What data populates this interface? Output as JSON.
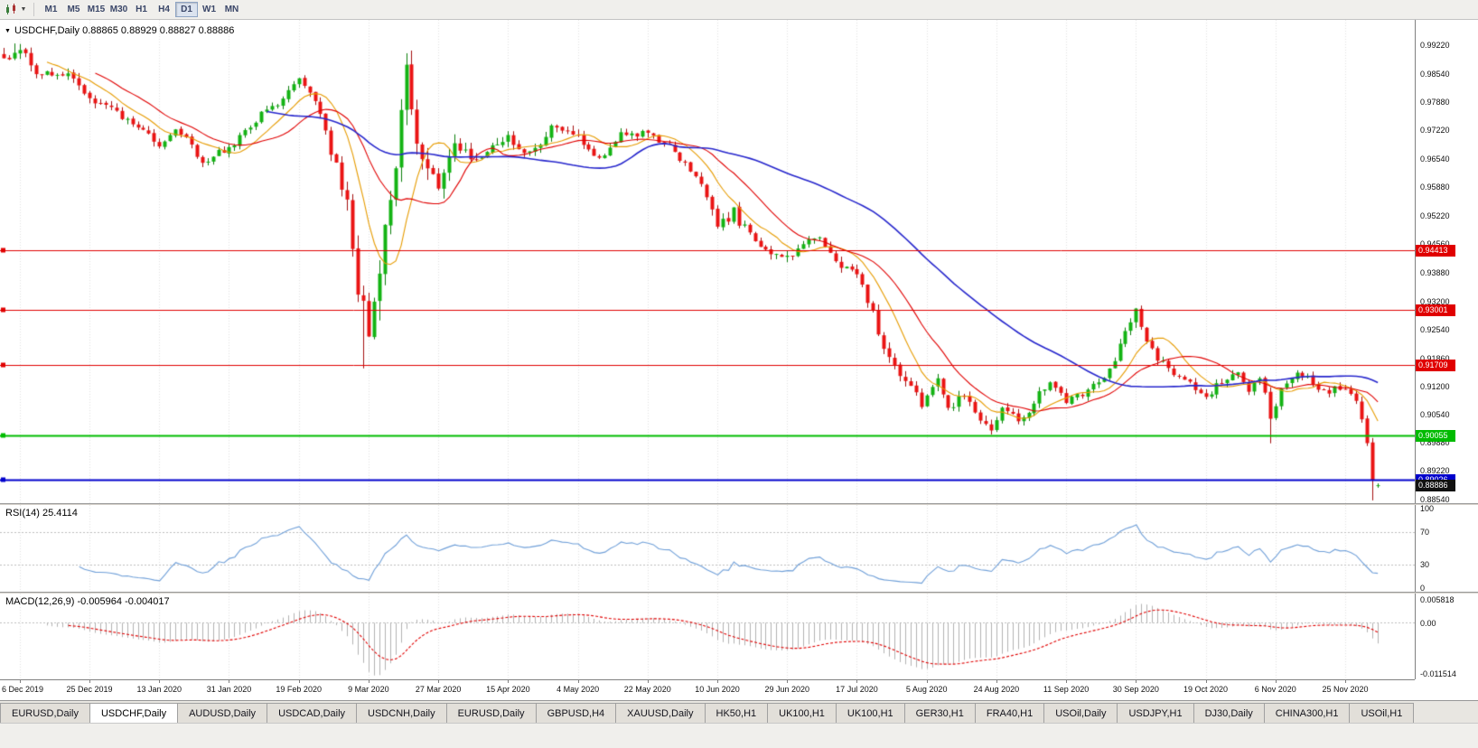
{
  "toolbar": {
    "timeframes": [
      "M1",
      "M5",
      "M15",
      "M30",
      "H1",
      "H4",
      "D1",
      "W1",
      "MN"
    ],
    "active_timeframe": "D1"
  },
  "chart": {
    "title": "USDCHF,Daily  0.88865 0.88929 0.88827 0.88886",
    "rsi_label": "RSI(14) 25.4114",
    "macd_label": "MACD(12,26,9) -0.005964 -0.004017"
  },
  "chart_data": {
    "type": "candlestick",
    "symbol": "USDCHF",
    "timeframe": "Daily",
    "current": {
      "open": 0.88865,
      "high": 0.88929,
      "low": 0.88827,
      "close": 0.88886
    },
    "rsi_period": 14,
    "rsi_value": 25.4114,
    "macd_params": [
      12,
      26,
      9
    ],
    "macd_main": -0.005964,
    "macd_signal": -0.004017,
    "y_range": [
      0.88464,
      0.99814
    ],
    "y_ticks": [
      "0.99220",
      "0.98540",
      "0.97880",
      "0.97220",
      "0.96540",
      "0.95880",
      "0.95220",
      "0.94560",
      "0.93880",
      "0.93200",
      "0.92540",
      "0.91860",
      "0.91200",
      "0.90540",
      "0.89880",
      "0.89220",
      "0.88540"
    ],
    "x_labels": [
      "6 Dec 2019",
      "25 Dec 2019",
      "13 Jan 2020",
      "31 Jan 2020",
      "19 Feb 2020",
      "9 Mar 2020",
      "27 Mar 2020",
      "15 Apr 2020",
      "4 May 2020",
      "22 May 2020",
      "10 Jun 2020",
      "29 Jun 2020",
      "17 Jul 2020",
      "5 Aug 2020",
      "24 Aug 2020",
      "11 Sep 2020",
      "30 Sep 2020",
      "19 Oct 2020",
      "6 Nov 2020",
      "25 Nov 2020"
    ],
    "label_day_start": 3,
    "label_day_step": 13,
    "bars": 257,
    "hlines": [
      {
        "price": 0.94413,
        "label": "0.94413",
        "color": "#e00000",
        "width": 1
      },
      {
        "price": 0.93001,
        "label": "0.93001",
        "color": "#e00000",
        "width": 1
      },
      {
        "price": 0.91709,
        "label": "0.91709",
        "color": "#e00000",
        "width": 1
      },
      {
        "price": 0.90055,
        "label": "0.90055",
        "color": "#00bb00",
        "width": 2
      },
      {
        "price": 0.89026,
        "label": "0.89026",
        "color": "#0000cc",
        "width": 2
      }
    ],
    "current_price_label": {
      "label": "0.88886",
      "bg": "#111111"
    },
    "rsi_panel": {
      "ticks": [
        "100",
        "70",
        "30",
        "0"
      ],
      "tick_values": [
        100,
        70,
        30,
        0
      ],
      "levels": [
        70,
        30
      ],
      "line_color": "#6f9fd8"
    },
    "macd_panel": {
      "ticks_top": "0.005818",
      "ticks_zero": "0.00",
      "ticks_bottom": "-0.011514",
      "scale_max": 0.0062,
      "scale_min": -0.0122,
      "hist_color": "#b2b2b2",
      "signal_color": "#e00000"
    },
    "ma_lines": [
      {
        "period": 9,
        "color": "#e69b00"
      },
      {
        "period": 18,
        "color": "#e00000"
      },
      {
        "period": 50,
        "color": "#2626cc"
      }
    ],
    "colors": {
      "up": "#14b314",
      "up_dark": "#0a7d0a",
      "down": "#ea1414",
      "down_dark": "#a30d0d",
      "grid": "#e0e0e0"
    },
    "price_path_anchors": [
      [
        0,
        0.9895,
        0.003
      ],
      [
        3,
        0.9912,
        0.003
      ],
      [
        7,
        0.9845,
        0.0028
      ],
      [
        12,
        0.9856,
        0.0025
      ],
      [
        16,
        0.98,
        0.0025
      ],
      [
        22,
        0.9756,
        0.0022
      ],
      [
        29,
        0.9692,
        0.0024
      ],
      [
        33,
        0.9722,
        0.0022
      ],
      [
        37,
        0.9646,
        0.0022
      ],
      [
        42,
        0.9684,
        0.002
      ],
      [
        47,
        0.9744,
        0.002
      ],
      [
        52,
        0.98,
        0.002
      ],
      [
        55,
        0.9844,
        0.0022
      ],
      [
        58,
        0.9788,
        0.003
      ],
      [
        61,
        0.9676,
        0.0042
      ],
      [
        64,
        0.9556,
        0.006
      ],
      [
        66,
        0.933,
        0.0085
      ],
      [
        68,
        0.9232,
        0.0095
      ],
      [
        70,
        0.942,
        0.0095
      ],
      [
        72,
        0.9556,
        0.009
      ],
      [
        74,
        0.9776,
        0.0085
      ],
      [
        75,
        0.9868,
        0.008
      ],
      [
        77,
        0.97,
        0.0075
      ],
      [
        79,
        0.9622,
        0.006
      ],
      [
        81,
        0.958,
        0.005
      ],
      [
        84,
        0.9698,
        0.0045
      ],
      [
        87,
        0.9652,
        0.0038
      ],
      [
        90,
        0.968,
        0.0032
      ],
      [
        94,
        0.9706,
        0.003
      ],
      [
        98,
        0.9664,
        0.0028
      ],
      [
        102,
        0.9724,
        0.0028
      ],
      [
        107,
        0.9706,
        0.0026
      ],
      [
        111,
        0.9662,
        0.0026
      ],
      [
        115,
        0.9714,
        0.0025
      ],
      [
        120,
        0.9718,
        0.0024
      ],
      [
        124,
        0.9682,
        0.0024
      ],
      [
        128,
        0.9632,
        0.0024
      ],
      [
        131,
        0.9572,
        0.0028
      ],
      [
        133,
        0.9492,
        0.0034
      ],
      [
        136,
        0.953,
        0.003
      ],
      [
        139,
        0.9476,
        0.0028
      ],
      [
        143,
        0.9442,
        0.0026
      ],
      [
        146,
        0.9422,
        0.0026
      ],
      [
        149,
        0.9464,
        0.0024
      ],
      [
        152,
        0.947,
        0.0024
      ],
      [
        155,
        0.9412,
        0.0024
      ],
      [
        159,
        0.9382,
        0.0026
      ],
      [
        161,
        0.9322,
        0.0028
      ],
      [
        163,
        0.9252,
        0.003
      ],
      [
        165,
        0.9182,
        0.003
      ],
      [
        168,
        0.9122,
        0.003
      ],
      [
        171,
        0.9082,
        0.0028
      ],
      [
        172,
        0.9108,
        0.0028
      ],
      [
        174,
        0.914,
        0.0026
      ],
      [
        176,
        0.9062,
        0.0026
      ],
      [
        179,
        0.9098,
        0.0026
      ],
      [
        182,
        0.9042,
        0.0026
      ],
      [
        184,
        0.9012,
        0.0026
      ],
      [
        186,
        0.9078,
        0.0024
      ],
      [
        189,
        0.9032,
        0.0024
      ],
      [
        192,
        0.9088,
        0.0022
      ],
      [
        195,
        0.9128,
        0.0022
      ],
      [
        198,
        0.9086,
        0.0022
      ],
      [
        201,
        0.9104,
        0.0021
      ],
      [
        204,
        0.9128,
        0.0021
      ],
      [
        207,
        0.9178,
        0.0023
      ],
      [
        209,
        0.9248,
        0.0026
      ],
      [
        211,
        0.9294,
        0.0028
      ],
      [
        213,
        0.9232,
        0.0026
      ],
      [
        215,
        0.919,
        0.0023
      ],
      [
        218,
        0.9156,
        0.0021
      ],
      [
        221,
        0.9132,
        0.0021
      ],
      [
        224,
        0.9092,
        0.0021
      ],
      [
        227,
        0.9134,
        0.0021
      ],
      [
        230,
        0.915,
        0.0021
      ],
      [
        232,
        0.9112,
        0.0022
      ],
      [
        234,
        0.9148,
        0.0024
      ],
      [
        236,
        0.9042,
        0.0034
      ],
      [
        238,
        0.9108,
        0.0026
      ],
      [
        241,
        0.9154,
        0.0022
      ],
      [
        244,
        0.9126,
        0.0021
      ],
      [
        247,
        0.911,
        0.0021
      ],
      [
        250,
        0.9122,
        0.0021
      ],
      [
        252,
        0.9082,
        0.0022
      ],
      [
        254,
        0.899,
        0.0026
      ],
      [
        255,
        0.8896,
        0.0026
      ],
      [
        256,
        0.8889,
        0.001
      ]
    ],
    "wick_overrides": [
      {
        "i": 2,
        "high": 0.9926
      },
      {
        "i": 67,
        "low": 0.9163
      },
      {
        "i": 75,
        "high": 0.9903
      },
      {
        "i": 236,
        "low": 0.8987
      },
      {
        "i": 255,
        "low": 0.8853
      }
    ],
    "seed": 1234
  },
  "tabs": {
    "active_index": 1,
    "items": [
      "EURUSD,Daily",
      "USDCHF,Daily",
      "AUDUSD,Daily",
      "USDCAD,Daily",
      "USDCNH,Daily",
      "EURUSD,Daily",
      "GBPUSD,H4",
      "XAUUSD,Daily",
      "HK50,H1",
      "UK100,H1",
      "UK100,H1",
      "GER30,H1",
      "FRA40,H1",
      "USOil,Daily",
      "USDJPY,H1",
      "DJ30,Daily",
      "CHINA300,H1",
      "USOil,H1"
    ]
  }
}
